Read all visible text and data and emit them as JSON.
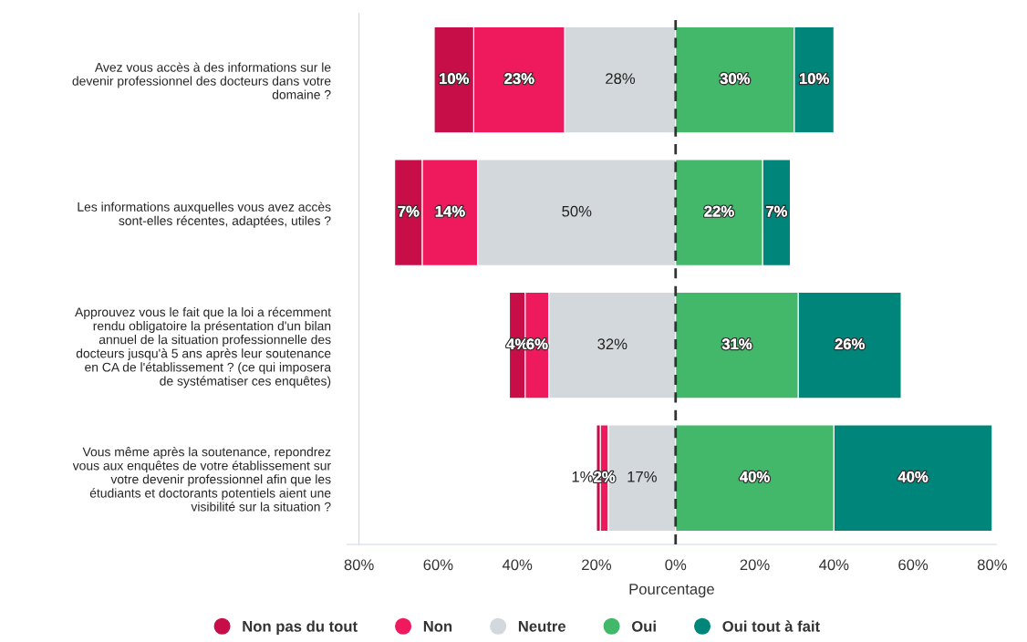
{
  "chart_data": {
    "type": "bar",
    "orientation": "horizontal",
    "categories": [
      "Avez vous accès à des informations sur le\ndevenir professionnel des docteurs dans votre\ndomaine ?",
      "Les informations auxquelles vous avez accès\nsont-elles récentes, adaptées, utiles ?",
      "Approuvez vous le fait que la loi a récemment\nrendu obligatoire la présentation d'un bilan\nannuel de la situation professionnelle des\ndocteurs jusqu'à 5 ans après leur soutenance\nen CA de l'établissement ? (ce qui imposera\nde systématiser ces enquêtes)",
      "Vous même après la soutenance, repondrez\nvous aux enquêtes de votre établissement sur\nvotre devenir professionnel afin que les\nétudiants et doctorants potentiels aient une\nvisibilité sur la situation ?"
    ],
    "series": [
      {
        "name": "Non pas du tout",
        "color": "#c70e48",
        "values": [
          10,
          7,
          4,
          1
        ],
        "base": [
          -61,
          -71,
          -42,
          -20
        ],
        "value_labels": [
          "10%",
          "7%",
          "4%",
          "1%"
        ]
      },
      {
        "name": "Non",
        "color": "#ef1a5e",
        "values": [
          23,
          14,
          6,
          2
        ],
        "base": [
          -51,
          -64,
          -38,
          -19
        ],
        "value_labels": [
          "23%",
          "14%",
          "6%",
          "2%"
        ]
      },
      {
        "name": "Neutre",
        "color": "#d3d8dc",
        "values": [
          28,
          50,
          32,
          17
        ],
        "base": [
          -28,
          -50,
          -32,
          -17
        ],
        "value_labels": [
          "28%",
          "50%",
          "32%",
          "17%"
        ]
      },
      {
        "name": "Oui",
        "color": "#43b76a",
        "values": [
          30,
          22,
          31,
          40
        ],
        "base": [
          0,
          0,
          0,
          0
        ],
        "value_labels": [
          "30%",
          "22%",
          "31%",
          "40%"
        ]
      },
      {
        "name": "Oui tout à fait",
        "color": "#00857a",
        "values": [
          10,
          7,
          26,
          40
        ],
        "base": [
          30,
          22,
          31,
          40
        ],
        "value_labels": [
          "10%",
          "7%",
          "26%",
          "40%"
        ]
      }
    ],
    "xlim": [
      -83,
      81
    ],
    "xticks": [
      {
        "value": -80,
        "label": "80%"
      },
      {
        "value": -60,
        "label": "60%"
      },
      {
        "value": -40,
        "label": "40%"
      },
      {
        "value": -20,
        "label": "20%"
      },
      {
        "value": 0,
        "label": "0%"
      },
      {
        "value": 20,
        "label": "20%"
      },
      {
        "value": 40,
        "label": "40%"
      },
      {
        "value": 60,
        "label": "60%"
      },
      {
        "value": 80,
        "label": "80%"
      }
    ],
    "xlabel": "Pourcentage",
    "ref_lines": [
      {
        "axis": "x",
        "value": 0,
        "color": "#333333",
        "line_style": "dashed"
      }
    ],
    "legend": "bottom",
    "grid": false
  }
}
